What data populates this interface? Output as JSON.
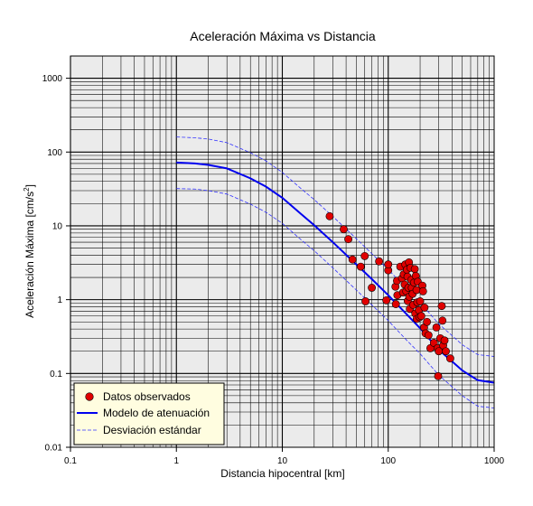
{
  "chart_data": {
    "type": "scatter",
    "title": "Aceleración Máxima vs Distancia",
    "xlabel": "Distancia hipocentral [km]",
    "ylabel_main": "Aceleración Máxima [cm/s",
    "ylabel_sup": "2",
    "ylabel_end": "]",
    "xscale": "log",
    "yscale": "log",
    "xlim": [
      0.1,
      1000
    ],
    "ylim": [
      0.01,
      2000
    ],
    "grid": true,
    "legend_position": "bottom-left",
    "x_ticks": [
      {
        "value": 0.1,
        "label": "0.1"
      },
      {
        "value": 1,
        "label": "1"
      },
      {
        "value": 10,
        "label": "10"
      },
      {
        "value": 100,
        "label": "100"
      },
      {
        "value": 1000,
        "label": "1000"
      }
    ],
    "y_ticks": [
      {
        "value": 0.01,
        "label": "0.01"
      },
      {
        "value": 0.1,
        "label": "0.1"
      },
      {
        "value": 1,
        "label": "1"
      },
      {
        "value": 10,
        "label": "10"
      },
      {
        "value": 100,
        "label": "100"
      },
      {
        "value": 1000,
        "label": "1000"
      }
    ],
    "legend": [
      {
        "label": "Datos observados",
        "kind": "marker",
        "color": "#e00000"
      },
      {
        "label": "Modelo de atenuación",
        "kind": "line",
        "color": "#0000ee"
      },
      {
        "label": "Desviación estándar",
        "kind": "dashed",
        "color": "#0000ee"
      }
    ],
    "colors": {
      "observed": "#e00000",
      "model": "#0000ee",
      "std": "#3333ff",
      "plot_bg": "#ebebeb"
    },
    "series": [
      {
        "name": "Datos observados",
        "kind": "points",
        "points": [
          [
            28,
            13.5
          ],
          [
            38,
            9
          ],
          [
            42,
            6.6
          ],
          [
            46,
            3.5
          ],
          [
            55,
            2.8
          ],
          [
            60,
            3.9
          ],
          [
            61,
            0.95
          ],
          [
            70,
            1.45
          ],
          [
            82,
            3.3
          ],
          [
            96,
            0.98
          ],
          [
            100,
            2.5
          ],
          [
            100,
            3.0
          ],
          [
            117,
            1.5
          ],
          [
            118,
            0.87
          ],
          [
            121,
            1.8
          ],
          [
            122,
            1.15
          ],
          [
            130,
            2.8
          ],
          [
            135,
            1.95
          ],
          [
            138,
            1.25
          ],
          [
            140,
            2.2
          ],
          [
            143,
            1.6
          ],
          [
            145,
            3.0
          ],
          [
            148,
            1.3
          ],
          [
            150,
            2.55
          ],
          [
            152,
            2.05
          ],
          [
            153,
            0.96
          ],
          [
            155,
            1.45
          ],
          [
            157,
            3.2
          ],
          [
            158,
            1.1
          ],
          [
            160,
            0.75
          ],
          [
            162,
            2.7
          ],
          [
            165,
            1.85
          ],
          [
            167,
            1.45
          ],
          [
            170,
            1.2
          ],
          [
            172,
            0.85
          ],
          [
            175,
            1.7
          ],
          [
            178,
            2.6
          ],
          [
            180,
            0.65
          ],
          [
            182,
            2.1
          ],
          [
            185,
            1.35
          ],
          [
            186,
            0.55
          ],
          [
            188,
            0.92
          ],
          [
            190,
            1.75
          ],
          [
            195,
            0.72
          ],
          [
            198,
            0.58
          ],
          [
            200,
            0.95
          ],
          [
            205,
            0.6
          ],
          [
            210,
            1.55
          ],
          [
            213,
            1.3
          ],
          [
            218,
            0.42
          ],
          [
            220,
            0.78
          ],
          [
            225,
            0.35
          ],
          [
            232,
            0.5
          ],
          [
            240,
            0.33
          ],
          [
            250,
            0.22
          ],
          [
            270,
            0.26
          ],
          [
            285,
            0.42
          ],
          [
            292,
            0.22
          ],
          [
            296,
            0.092
          ],
          [
            300,
            0.2
          ],
          [
            310,
            0.3
          ],
          [
            320,
            0.82
          ],
          [
            325,
            0.52
          ],
          [
            330,
            0.24
          ],
          [
            340,
            0.28
          ],
          [
            350,
            0.2
          ],
          [
            385,
            0.16
          ]
        ]
      },
      {
        "name": "Modelo de atenuación",
        "kind": "line",
        "points": [
          [
            1,
            72
          ],
          [
            1.5,
            70
          ],
          [
            2,
            67
          ],
          [
            3,
            60
          ],
          [
            5,
            44
          ],
          [
            7,
            34
          ],
          [
            10,
            24
          ],
          [
            15,
            14.5
          ],
          [
            20,
            10.2
          ],
          [
            30,
            6.0
          ],
          [
            50,
            3.0
          ],
          [
            70,
            1.9
          ],
          [
            100,
            1.15
          ],
          [
            150,
            0.63
          ],
          [
            200,
            0.41
          ],
          [
            300,
            0.21
          ],
          [
            500,
            0.11
          ],
          [
            700,
            0.081
          ],
          [
            1000,
            0.075
          ]
        ]
      },
      {
        "name": "Desviación estándar",
        "kind": "dashed",
        "points": [
          [
            1,
            160
          ],
          [
            1.5,
            156
          ],
          [
            2,
            150
          ],
          [
            3,
            134
          ],
          [
            5,
            98
          ],
          [
            7,
            76
          ],
          [
            10,
            53
          ],
          [
            15,
            32
          ],
          [
            20,
            22.7
          ],
          [
            30,
            13.4
          ],
          [
            50,
            6.7
          ],
          [
            70,
            4.2
          ],
          [
            100,
            2.56
          ],
          [
            150,
            1.4
          ],
          [
            200,
            0.91
          ],
          [
            300,
            0.47
          ],
          [
            500,
            0.245
          ],
          [
            700,
            0.18
          ],
          [
            1000,
            0.17
          ]
        ]
      },
      {
        "name": "Desviación estándar",
        "kind": "dashed",
        "points": [
          [
            1,
            32
          ],
          [
            1.5,
            31.5
          ],
          [
            2,
            30
          ],
          [
            3,
            27
          ],
          [
            5,
            19.7
          ],
          [
            7,
            15.3
          ],
          [
            10,
            10.8
          ],
          [
            15,
            6.5
          ],
          [
            20,
            4.6
          ],
          [
            30,
            2.7
          ],
          [
            50,
            1.35
          ],
          [
            70,
            0.85
          ],
          [
            100,
            0.52
          ],
          [
            150,
            0.28
          ],
          [
            200,
            0.185
          ],
          [
            300,
            0.095
          ],
          [
            500,
            0.05
          ],
          [
            700,
            0.036
          ],
          [
            1000,
            0.034
          ]
        ]
      }
    ]
  }
}
